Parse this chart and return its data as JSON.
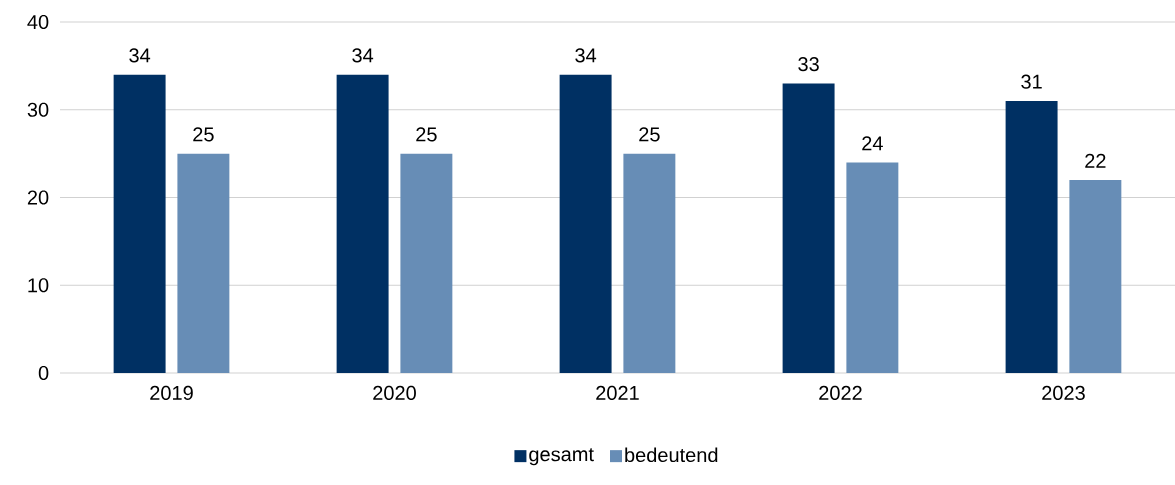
{
  "chart_data": {
    "type": "bar",
    "categories": [
      "2019",
      "2020",
      "2021",
      "2022",
      "2023"
    ],
    "series": [
      {
        "name": "gesamt",
        "color": "#003063",
        "values": [
          34,
          34,
          34,
          33,
          31
        ]
      },
      {
        "name": "bedeutend",
        "color": "#678db6",
        "values": [
          25,
          25,
          25,
          24,
          22
        ]
      }
    ],
    "ylim": [
      0,
      40
    ],
    "yticks": [
      0,
      10,
      20,
      30,
      40
    ],
    "grid": "y",
    "legend": "bottom",
    "data_labels": true
  }
}
